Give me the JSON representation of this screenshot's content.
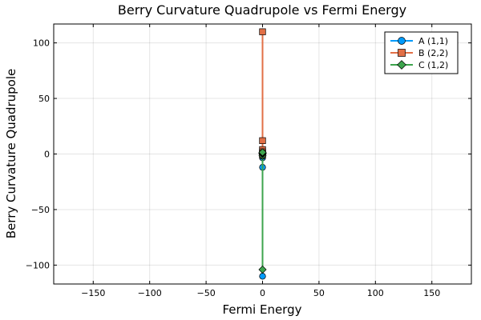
{
  "chart_data": {
    "type": "line",
    "title": "Berry Curvature Quadrupole vs Fermi Energy",
    "xlabel": "Fermi Energy",
    "ylabel": "Berry Curvature Quadrupole",
    "xlim": [
      -185,
      185
    ],
    "ylim": [
      -117,
      117
    ],
    "xticks": [
      -150,
      -100,
      -50,
      0,
      50,
      100,
      150
    ],
    "xtick_labels": [
      "−150",
      "−100",
      "−50",
      "0",
      "50",
      "100",
      "150"
    ],
    "yticks": [
      -100,
      -50,
      0,
      50,
      100
    ],
    "ytick_labels": [
      "−100",
      "−50",
      "0",
      "50",
      "100"
    ],
    "grid": true,
    "legend_position": "top-right",
    "series": [
      {
        "name": "A (1,1)",
        "color": "#009AFA",
        "marker": "circle",
        "x": [
          0,
          0,
          0,
          0,
          0,
          0,
          0,
          0
        ],
        "y": [
          -110,
          -12,
          -3.5,
          -2,
          -1,
          0,
          1,
          2
        ]
      },
      {
        "name": "B (2,2)",
        "color": "#E26F46",
        "marker": "square",
        "x": [
          0,
          0,
          0,
          0,
          0,
          0,
          0
        ],
        "y": [
          110,
          12,
          4,
          2,
          1,
          0,
          -1
        ]
      },
      {
        "name": "C (1,2)",
        "color": "#3DA44D",
        "marker": "diamond",
        "x": [
          0,
          0,
          0,
          0,
          0,
          0
        ],
        "y": [
          -104,
          -1.5,
          0,
          0.5,
          1,
          1.5
        ]
      }
    ]
  }
}
